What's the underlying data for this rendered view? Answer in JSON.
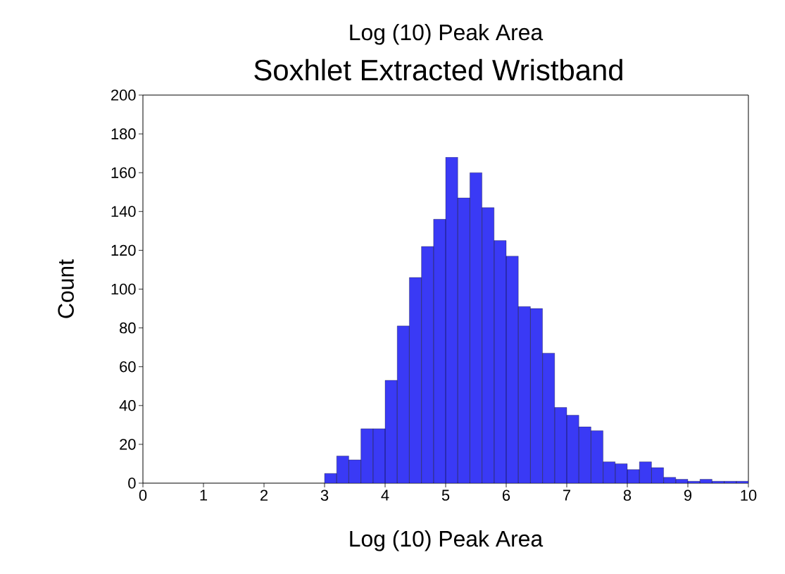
{
  "chart_data": {
    "type": "histogram",
    "title": "Soxhlet Extracted Wristband",
    "subtitle": "Log (10) Peak Area",
    "xlabel": "Log (10) Peak Area",
    "ylabel": "Count",
    "color": "#3a3af5",
    "bins": [
      3.0,
      3.2,
      3.4,
      3.6,
      3.8,
      4.0,
      4.2,
      4.4,
      4.6,
      4.8,
      5.0,
      5.2,
      5.4,
      5.6,
      5.8,
      6.0,
      6.2,
      6.4,
      6.6,
      6.8,
      7.0,
      7.2,
      7.4,
      7.6,
      7.8,
      8.0,
      8.2,
      8.4,
      8.6,
      8.8,
      9.0,
      9.2,
      9.4,
      9.6,
      9.8,
      10.0
    ],
    "values": [
      5,
      14,
      12,
      28,
      28,
      53,
      81,
      106,
      122,
      136,
      168,
      147,
      160,
      142,
      125,
      117,
      91,
      90,
      67,
      39,
      35,
      29,
      27,
      11,
      10,
      7,
      11,
      8,
      3,
      2,
      1,
      2,
      1,
      1,
      1
    ],
    "xlim": [
      0,
      10
    ],
    "ylim": [
      0,
      200
    ],
    "xticks": [
      0,
      1,
      2,
      3,
      4,
      5,
      6,
      7,
      8,
      9,
      10
    ],
    "yticks": [
      0,
      20,
      40,
      60,
      80,
      100,
      120,
      140,
      160,
      180,
      200
    ],
    "grid": false
  }
}
